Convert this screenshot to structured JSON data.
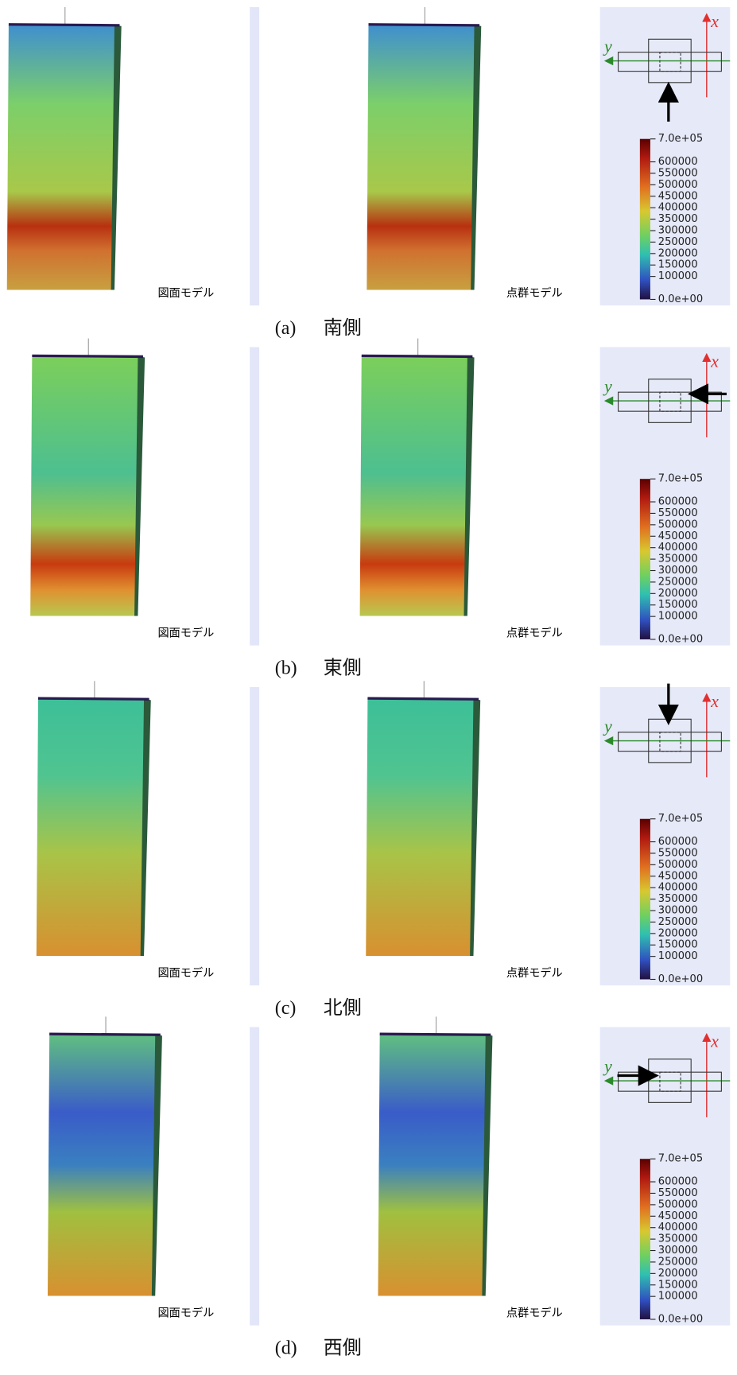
{
  "rows": [
    {
      "label": "(a)",
      "direction": "南側",
      "left_caption": "図面モデル",
      "right_caption": "点群モデル"
    },
    {
      "label": "(b)",
      "direction": "東側",
      "left_caption": "図面モデル",
      "right_caption": "点群モデル"
    },
    {
      "label": "(c)",
      "direction": "北側",
      "left_caption": "図面モデル",
      "right_caption": "点群モデル"
    },
    {
      "label": "(d)",
      "direction": "西側",
      "left_caption": "図面モデル",
      "right_caption": "点群モデル"
    }
  ],
  "legend": {
    "axis_x": "x",
    "axis_y": "y",
    "colorbar": [
      "7.0e+05",
      "600000",
      "550000",
      "500000",
      "450000",
      "400000",
      "350000",
      "300000",
      "250000",
      "200000",
      "150000",
      "100000",
      "0.0e+00"
    ]
  }
}
